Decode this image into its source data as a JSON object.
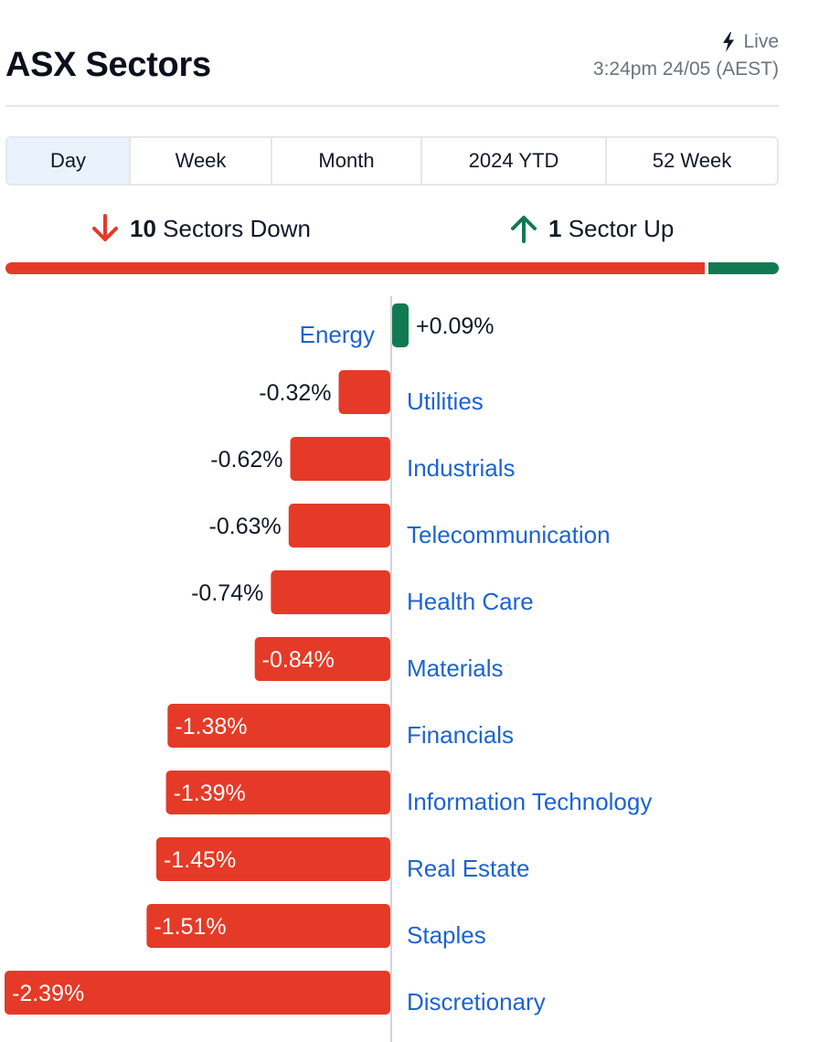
{
  "header": {
    "title": "ASX Sectors",
    "live_label": "Live",
    "timestamp": "3:24pm 24/05 (AEST)"
  },
  "tabs": [
    {
      "label": "Day",
      "active": true
    },
    {
      "label": "Week",
      "active": false
    },
    {
      "label": "Month",
      "active": false
    },
    {
      "label": "2024 YTD",
      "active": false
    },
    {
      "label": "52 Week",
      "active": false
    }
  ],
  "summary": {
    "down_count": "10",
    "down_label": "Sectors Down",
    "up_count": "1",
    "up_label": "Sector Up"
  },
  "colors": {
    "negative": "#e53a27",
    "positive": "#127a52",
    "link": "#1d63d1",
    "axis": "#d1d5db"
  },
  "chart_data": {
    "type": "bar",
    "orientation": "horizontal",
    "unit": "%",
    "categories": [
      "Energy",
      "Utilities",
      "Industrials",
      "Telecommunication",
      "Health Care",
      "Materials",
      "Financials",
      "Information Technology",
      "Real Estate",
      "Staples",
      "Discretionary"
    ],
    "values": [
      0.09,
      -0.32,
      -0.62,
      -0.63,
      -0.74,
      -0.84,
      -1.38,
      -1.39,
      -1.45,
      -1.51,
      -2.39
    ],
    "value_labels": [
      "+0.09%",
      "-0.32%",
      "-0.62%",
      "-0.63%",
      "-0.74%",
      "-0.84%",
      "-1.38%",
      "-1.39%",
      "-1.45%",
      "-1.51%",
      "-2.39%"
    ],
    "sectors_down": 10,
    "sectors_up": 1
  }
}
